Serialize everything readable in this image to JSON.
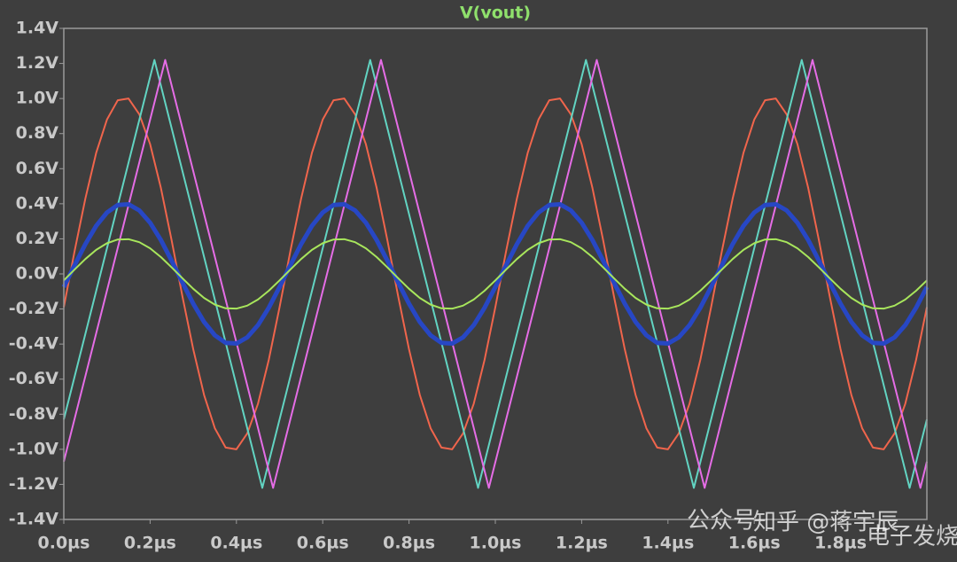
{
  "chart_data": {
    "type": "line",
    "title": "V(vout)",
    "xlim": [
      0,
      2.0
    ],
    "ylim": [
      -1.4,
      1.4
    ],
    "xticks": [
      {
        "value": 0,
        "label": "0.0µs"
      },
      {
        "value": 0.2,
        "label": "0.2µs"
      },
      {
        "value": 0.4,
        "label": "0.4µs"
      },
      {
        "value": 0.6,
        "label": "0.6µs"
      },
      {
        "value": 0.8,
        "label": "0.8µs"
      },
      {
        "value": 1.0,
        "label": "1.0µs"
      },
      {
        "value": 1.2,
        "label": "1.2µs"
      },
      {
        "value": 1.4,
        "label": "1.4µs"
      },
      {
        "value": 1.6,
        "label": "1.6µs"
      },
      {
        "value": 1.8,
        "label": "1.8µs"
      }
    ],
    "yticks": [
      {
        "value": 1.4,
        "label": "1.4V"
      },
      {
        "value": 1.2,
        "label": "1.2V"
      },
      {
        "value": 1.0,
        "label": "1.0V"
      },
      {
        "value": 0.8,
        "label": "0.8V"
      },
      {
        "value": 0.6,
        "label": "0.6V"
      },
      {
        "value": 0.4,
        "label": "0.4V"
      },
      {
        "value": 0.2,
        "label": "0.2V"
      },
      {
        "value": 0,
        "label": "0.0V"
      },
      {
        "value": -0.2,
        "label": "-0.2V"
      },
      {
        "value": -0.4,
        "label": "-0.4V"
      },
      {
        "value": -0.6,
        "label": "-0.6V"
      },
      {
        "value": -0.8,
        "label": "-0.8V"
      },
      {
        "value": -1.0,
        "label": "-1.0V"
      },
      {
        "value": -1.2,
        "label": "-1.2V"
      },
      {
        "value": -1.4,
        "label": "-1.4V"
      }
    ],
    "x": [
      0,
      0.025,
      0.05,
      0.075,
      0.1,
      0.125,
      0.15,
      0.175,
      0.2,
      0.225,
      0.25,
      0.275,
      0.3,
      0.325,
      0.35,
      0.375,
      0.4,
      0.425,
      0.45,
      0.475,
      0.5,
      0.525,
      0.55,
      0.575,
      0.6,
      0.625,
      0.65,
      0.675,
      0.7,
      0.725,
      0.75,
      0.775,
      0.8,
      0.825,
      0.85,
      0.875,
      0.9,
      0.925,
      0.95,
      0.975,
      1.0,
      1.025,
      1.05,
      1.075,
      1.1,
      1.125,
      1.15,
      1.175,
      1.2,
      1.225,
      1.25,
      1.275,
      1.3,
      1.325,
      1.35,
      1.375,
      1.4,
      1.425,
      1.45,
      1.475,
      1.5,
      1.525,
      1.55,
      1.575,
      1.6,
      1.625,
      1.65,
      1.675,
      1.7,
      1.725,
      1.75,
      1.775,
      1.8,
      1.825,
      1.85,
      1.875,
      1.9,
      1.925,
      1.95,
      1.975,
      2.0
    ],
    "series": [
      {
        "color": "#f0654c",
        "width": 2,
        "values": [
          -0.19,
          0.13,
          0.43,
          0.69,
          0.88,
          0.99,
          1.0,
          0.91,
          0.74,
          0.49,
          0.19,
          -0.13,
          -0.43,
          -0.69,
          -0.88,
          -0.99,
          -1.0,
          -0.91,
          -0.74,
          -0.49,
          -0.19,
          0.13,
          0.43,
          0.69,
          0.88,
          0.99,
          1.0,
          0.91,
          0.74,
          0.49,
          0.19,
          -0.13,
          -0.43,
          -0.69,
          -0.88,
          -0.99,
          -1.0,
          -0.91,
          -0.74,
          -0.49,
          -0.19,
          0.13,
          0.43,
          0.69,
          0.88,
          0.99,
          1.0,
          0.91,
          0.74,
          0.49,
          0.19,
          -0.13,
          -0.43,
          -0.69,
          -0.88,
          -0.99,
          -1.0,
          -0.91,
          -0.74,
          -0.49,
          -0.19,
          0.13,
          0.43,
          0.69,
          0.88,
          0.99,
          1.0,
          0.91,
          0.74,
          0.49,
          0.19,
          -0.13,
          -0.43,
          -0.69,
          -0.88,
          -0.99,
          -1.0,
          -0.91,
          -0.74,
          -0.49,
          -0.19
        ]
      },
      {
        "color": "#62d4c2",
        "width": 2,
        "x": [
          0,
          0.21,
          0.46,
          0.71,
          0.96,
          1.21,
          1.46,
          1.71,
          1.96,
          2.0
        ],
        "values": [
          -0.83,
          1.22,
          -1.22,
          1.22,
          -1.22,
          1.22,
          -1.22,
          1.22,
          -1.22,
          -0.83
        ]
      },
      {
        "color": "#e56de6",
        "width": 2,
        "x": [
          0,
          0.235,
          0.485,
          0.735,
          0.985,
          1.235,
          1.485,
          1.735,
          1.985,
          2.0
        ],
        "values": [
          -1.07,
          1.22,
          -1.22,
          1.22,
          -1.22,
          1.22,
          -1.22,
          1.22,
          -1.22,
          -1.07
        ]
      },
      {
        "color": "#2747c4",
        "width": 5,
        "values": [
          -0.075,
          0.05,
          0.17,
          0.274,
          0.35,
          0.393,
          0.397,
          0.362,
          0.292,
          0.193,
          0.075,
          -0.05,
          -0.17,
          -0.274,
          -0.35,
          -0.393,
          -0.397,
          -0.362,
          -0.292,
          -0.193,
          -0.075,
          0.05,
          0.17,
          0.274,
          0.35,
          0.393,
          0.397,
          0.362,
          0.292,
          0.193,
          0.075,
          -0.05,
          -0.17,
          -0.274,
          -0.35,
          -0.393,
          -0.397,
          -0.362,
          -0.292,
          -0.193,
          -0.075,
          0.05,
          0.17,
          0.274,
          0.35,
          0.393,
          0.397,
          0.362,
          0.292,
          0.193,
          0.075,
          -0.05,
          -0.17,
          -0.274,
          -0.35,
          -0.393,
          -0.397,
          -0.362,
          -0.292,
          -0.193,
          -0.075,
          0.05,
          0.17,
          0.274,
          0.35,
          0.393,
          0.397,
          0.362,
          0.292,
          0.193,
          0.075,
          -0.05,
          -0.17,
          -0.274,
          -0.35,
          -0.393,
          -0.397,
          -0.362,
          -0.292,
          -0.193,
          -0.075
        ]
      },
      {
        "color": "#a8e65c",
        "width": 2,
        "values": [
          -0.037,
          0.025,
          0.085,
          0.137,
          0.175,
          0.196,
          0.198,
          0.181,
          0.146,
          0.096,
          0.037,
          -0.025,
          -0.085,
          -0.137,
          -0.175,
          -0.196,
          -0.198,
          -0.181,
          -0.146,
          -0.096,
          -0.037,
          0.025,
          0.085,
          0.137,
          0.175,
          0.196,
          0.198,
          0.181,
          0.146,
          0.096,
          0.037,
          -0.025,
          -0.085,
          -0.137,
          -0.175,
          -0.196,
          -0.198,
          -0.181,
          -0.146,
          -0.096,
          -0.037,
          0.025,
          0.085,
          0.137,
          0.175,
          0.196,
          0.198,
          0.181,
          0.146,
          0.096,
          0.037,
          -0.025,
          -0.085,
          -0.137,
          -0.175,
          -0.196,
          -0.198,
          -0.181,
          -0.146,
          -0.096,
          -0.037,
          0.025,
          0.085,
          0.137,
          0.175,
          0.196,
          0.198,
          0.181,
          0.146,
          0.096,
          0.037,
          -0.025,
          -0.085,
          -0.137,
          -0.175,
          -0.196,
          -0.198,
          -0.181,
          -0.146,
          -0.096,
          -0.037
        ]
      }
    ],
    "watermarks": [
      "公众号",
      "知乎 @蒋宇辰",
      "电子发烧友"
    ]
  }
}
